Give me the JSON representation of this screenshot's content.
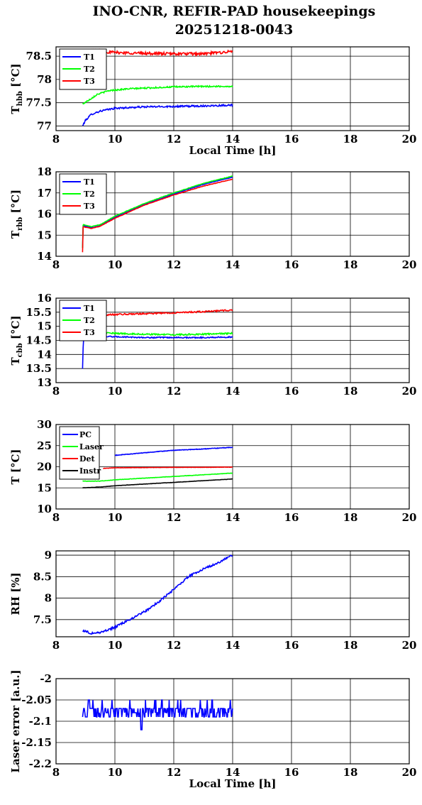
{
  "figure": {
    "title_line1": "INO-CNR, REFIR-PAD housekeepings",
    "title_line2": "20251218-0043"
  },
  "chart_data": [
    {
      "type": "line",
      "ylabel": {
        "main": "T",
        "sub": "hbb",
        "unit": "[°C]"
      },
      "xlabel": "Local Time [h]",
      "xlim": [
        8,
        20
      ],
      "ylim": [
        76.9,
        78.7
      ],
      "xticks": [
        "8",
        "10",
        "12",
        "14",
        "16",
        "18",
        "20"
      ],
      "yticks": [
        {
          "v": 77,
          "label": "77"
        },
        {
          "v": 77.5,
          "label": "77.5"
        },
        {
          "v": 78,
          "label": "78"
        },
        {
          "v": 78.5,
          "label": "78.5"
        }
      ],
      "legend": "top-left",
      "grid": true,
      "series": [
        {
          "name": "T1",
          "color": "#0000ff",
          "noise": 0.018,
          "points": [
            [
              8.9,
              77.0
            ],
            [
              9.0,
              77.12
            ],
            [
              9.2,
              77.25
            ],
            [
              9.5,
              77.32
            ],
            [
              10.0,
              77.38
            ],
            [
              11.0,
              77.41
            ],
            [
              12.0,
              77.42
            ],
            [
              13.0,
              77.43
            ],
            [
              14.0,
              77.45
            ]
          ]
        },
        {
          "name": "T2",
          "color": "#00ff00",
          "noise": 0.015,
          "points": [
            [
              8.9,
              77.47
            ],
            [
              9.1,
              77.55
            ],
            [
              9.4,
              77.68
            ],
            [
              9.8,
              77.76
            ],
            [
              10.5,
              77.8
            ],
            [
              12.0,
              77.84
            ],
            [
              13.0,
              77.85
            ],
            [
              14.0,
              77.85
            ]
          ]
        },
        {
          "name": "T3",
          "color": "#ff0000",
          "noise": 0.03,
          "points": [
            [
              8.9,
              78.62
            ],
            [
              10.0,
              78.58
            ],
            [
              11.0,
              78.56
            ],
            [
              12.0,
              78.55
            ],
            [
              13.0,
              78.55
            ],
            [
              14.0,
              78.6
            ]
          ]
        }
      ]
    },
    {
      "type": "line",
      "ylabel": {
        "main": "T",
        "sub": "rbb",
        "unit": "[°C]"
      },
      "xlabel": "",
      "xlim": [
        8,
        20
      ],
      "ylim": [
        14,
        18
      ],
      "xticks": [
        "8",
        "10",
        "12",
        "14",
        "16",
        "18",
        "20"
      ],
      "yticks": [
        {
          "v": 14,
          "label": "14"
        },
        {
          "v": 15,
          "label": "15"
        },
        {
          "v": 16,
          "label": "16"
        },
        {
          "v": 17,
          "label": "17"
        },
        {
          "v": 18,
          "label": "18"
        }
      ],
      "legend": "top-left",
      "grid": true,
      "series": [
        {
          "name": "T1",
          "color": "#0000ff",
          "noise": 0.01,
          "points": [
            [
              8.9,
              14.4
            ],
            [
              8.92,
              15.45
            ],
            [
              9.2,
              15.35
            ],
            [
              9.5,
              15.45
            ],
            [
              10.0,
              15.85
            ],
            [
              11.0,
              16.45
            ],
            [
              12.0,
              16.95
            ],
            [
              13.0,
              17.4
            ],
            [
              14.0,
              17.75
            ]
          ]
        },
        {
          "name": "T2",
          "color": "#00ff00",
          "noise": 0.01,
          "points": [
            [
              8.9,
              14.4
            ],
            [
              8.92,
              15.5
            ],
            [
              9.2,
              15.4
            ],
            [
              9.5,
              15.5
            ],
            [
              10.0,
              15.9
            ],
            [
              11.0,
              16.5
            ],
            [
              12.0,
              17.0
            ],
            [
              13.0,
              17.45
            ],
            [
              14.0,
              17.8
            ]
          ]
        },
        {
          "name": "T3",
          "color": "#ff0000",
          "noise": 0.01,
          "points": [
            [
              8.9,
              14.2
            ],
            [
              8.92,
              15.4
            ],
            [
              9.2,
              15.32
            ],
            [
              9.5,
              15.42
            ],
            [
              10.0,
              15.8
            ],
            [
              11.0,
              16.42
            ],
            [
              12.0,
              16.9
            ],
            [
              13.0,
              17.32
            ],
            [
              14.0,
              17.65
            ]
          ]
        }
      ]
    },
    {
      "type": "line",
      "ylabel": {
        "main": "T",
        "sub": "cbb",
        "unit": "[°C]"
      },
      "xlabel": "",
      "xlim": [
        8,
        20
      ],
      "ylim": [
        13,
        16
      ],
      "xticks": [
        "8",
        "10",
        "12",
        "14",
        "16",
        "18",
        "20"
      ],
      "yticks": [
        {
          "v": 13,
          "label": "13"
        },
        {
          "v": 13.5,
          "label": "13.5"
        },
        {
          "v": 14,
          "label": "14"
        },
        {
          "v": 14.5,
          "label": "14.5"
        },
        {
          "v": 15,
          "label": "15"
        },
        {
          "v": 15.5,
          "label": "15.5"
        },
        {
          "v": 16,
          "label": "16"
        }
      ],
      "legend": "top-left",
      "grid": true,
      "series": [
        {
          "name": "T1",
          "color": "#0000ff",
          "noise": 0.02,
          "points": [
            [
              8.9,
              13.5
            ],
            [
              8.93,
              14.6
            ],
            [
              9.5,
              14.65
            ],
            [
              10.0,
              14.63
            ],
            [
              11.0,
              14.6
            ],
            [
              12.0,
              14.6
            ],
            [
              13.0,
              14.6
            ],
            [
              14.0,
              14.62
            ]
          ]
        },
        {
          "name": "T2",
          "color": "#00ff00",
          "noise": 0.025,
          "points": [
            [
              9.0,
              14.78
            ],
            [
              10.0,
              14.75
            ],
            [
              11.0,
              14.72
            ],
            [
              12.0,
              14.7
            ],
            [
              13.0,
              14.72
            ],
            [
              14.0,
              14.75
            ]
          ]
        },
        {
          "name": "T3",
          "color": "#ff0000",
          "noise": 0.025,
          "points": [
            [
              9.0,
              15.38
            ],
            [
              10.0,
              15.42
            ],
            [
              11.0,
              15.45
            ],
            [
              12.0,
              15.48
            ],
            [
              13.0,
              15.52
            ],
            [
              14.0,
              15.58
            ]
          ]
        }
      ]
    },
    {
      "type": "line",
      "ylabel": {
        "main": "T [°C]",
        "sub": "",
        "unit": ""
      },
      "xlabel": "",
      "xlim": [
        8,
        20
      ],
      "ylim": [
        10,
        30
      ],
      "xticks": [
        "8",
        "10",
        "12",
        "14",
        "16",
        "18",
        "20"
      ],
      "yticks": [
        {
          "v": 10,
          "label": "10"
        },
        {
          "v": 15,
          "label": "15"
        },
        {
          "v": 20,
          "label": "20"
        },
        {
          "v": 25,
          "label": "25"
        },
        {
          "v": 30,
          "label": "30"
        }
      ],
      "legend": "top-left",
      "grid": true,
      "series": [
        {
          "name": "PC",
          "color": "#0000ff",
          "noise": 0.06,
          "points": [
            [
              10.0,
              22.7
            ],
            [
              11.0,
              23.3
            ],
            [
              12.0,
              23.9
            ],
            [
              13.0,
              24.2
            ],
            [
              14.0,
              24.6
            ]
          ]
        },
        {
          "name": "Laser",
          "color": "#00ff00",
          "noise": 0.04,
          "points": [
            [
              8.9,
              16.6
            ],
            [
              9.5,
              16.6
            ],
            [
              10.0,
              16.9
            ],
            [
              11.0,
              17.3
            ],
            [
              12.0,
              17.7
            ],
            [
              13.0,
              18.1
            ],
            [
              14.0,
              18.5
            ]
          ]
        },
        {
          "name": "Det",
          "color": "#ff0000",
          "noise": 0.03,
          "points": [
            [
              9.6,
              19.6
            ],
            [
              10.0,
              19.75
            ],
            [
              12.0,
              19.85
            ],
            [
              14.0,
              19.9
            ]
          ]
        },
        {
          "name": "Instr",
          "color": "#000000",
          "noise": 0.03,
          "points": [
            [
              8.9,
              15.0
            ],
            [
              9.5,
              15.2
            ],
            [
              10.0,
              15.5
            ],
            [
              11.0,
              15.9
            ],
            [
              12.0,
              16.3
            ],
            [
              13.0,
              16.7
            ],
            [
              14.0,
              17.1
            ]
          ]
        }
      ]
    },
    {
      "type": "line",
      "ylabel": {
        "main": "RH [%]",
        "sub": "",
        "unit": ""
      },
      "xlabel": "",
      "xlim": [
        8,
        20
      ],
      "ylim": [
        7.1,
        9.1
      ],
      "xticks": [
        "8",
        "10",
        "12",
        "14",
        "16",
        "18",
        "20"
      ],
      "yticks": [
        {
          "v": 7.5,
          "label": "7.5"
        },
        {
          "v": 8,
          "label": "8"
        },
        {
          "v": 8.5,
          "label": "8.5"
        },
        {
          "v": 9,
          "label": "9"
        }
      ],
      "legend": "none",
      "grid": true,
      "series": [
        {
          "name": "",
          "color": "#0000ff",
          "noise": 0.025,
          "points": [
            [
              8.9,
              7.25
            ],
            [
              9.2,
              7.18
            ],
            [
              9.5,
              7.2
            ],
            [
              10.0,
              7.32
            ],
            [
              10.5,
              7.5
            ],
            [
              11.0,
              7.68
            ],
            [
              11.5,
              7.92
            ],
            [
              12.0,
              8.2
            ],
            [
              12.5,
              8.5
            ],
            [
              13.0,
              8.68
            ],
            [
              13.5,
              8.82
            ],
            [
              14.0,
              9.0
            ]
          ]
        }
      ]
    },
    {
      "type": "line",
      "ylabel": {
        "main": "Laser error [a.u.]",
        "sub": "",
        "unit": ""
      },
      "xlabel": "Local Time [h]",
      "xlim": [
        8,
        20
      ],
      "ylim": [
        -2.2,
        -2.0
      ],
      "xticks": [
        "8",
        "10",
        "12",
        "14",
        "16",
        "18",
        "20"
      ],
      "yticks": [
        {
          "v": -2.2,
          "label": "-2.2"
        },
        {
          "v": -2.15,
          "label": "-2.15"
        },
        {
          "v": -2.1,
          "label": "-2.1"
        },
        {
          "v": -2.05,
          "label": "-2.05"
        },
        {
          "v": -2,
          "label": "-2"
        }
      ],
      "legend": "none",
      "grid": true,
      "series": [
        {
          "name": "",
          "color": "#0000ff",
          "quantized": true,
          "levels": [
            -2.05,
            -2.07,
            -2.09
          ],
          "points": [
            [
              8.9,
              -2.08
            ],
            [
              14.0,
              -2.08
            ]
          ],
          "extremes": [
            [
              10.9,
              -2.12
            ],
            [
              11.6,
              -2.05
            ],
            [
              13.3,
              -2.05
            ]
          ]
        }
      ]
    }
  ]
}
